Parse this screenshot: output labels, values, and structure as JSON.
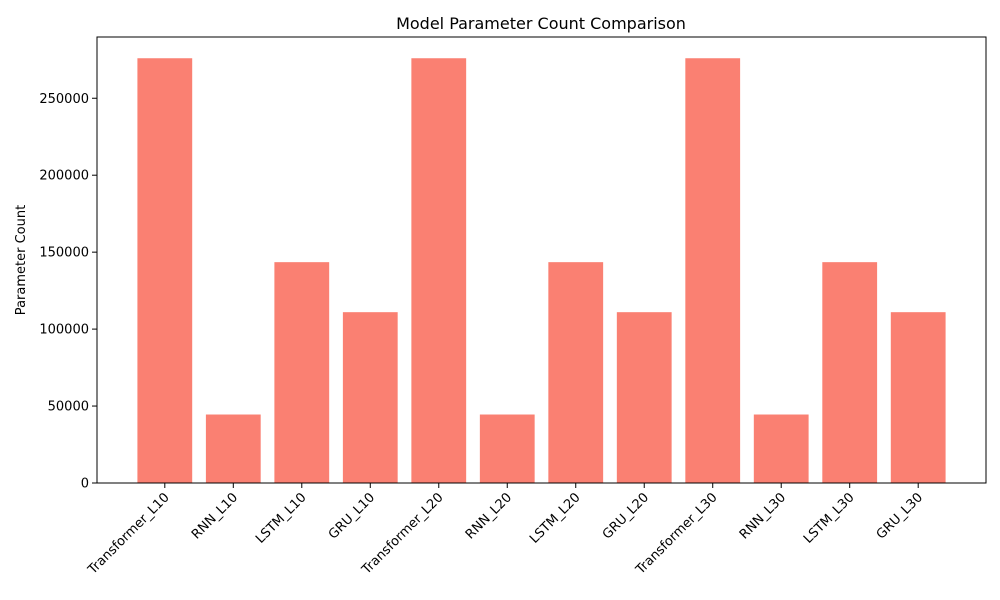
{
  "chart_data": {
    "type": "bar",
    "title": "Model Parameter Count Comparison",
    "xlabel": "",
    "ylabel": "Parameter Count",
    "categories": [
      "Transformer_L10",
      "RNN_L10",
      "LSTM_L10",
      "GRU_L10",
      "Transformer_L20",
      "RNN_L20",
      "LSTM_L20",
      "GRU_L20",
      "Transformer_L30",
      "RNN_L30",
      "LSTM_L30",
      "GRU_L30"
    ],
    "values": [
      276000,
      44500,
      143500,
      111000,
      276000,
      44500,
      143500,
      111000,
      276000,
      44500,
      143500,
      111000
    ],
    "ylim": [
      0,
      289800
    ],
    "yticks": [
      0,
      50000,
      100000,
      150000,
      200000,
      250000
    ],
    "x_tick_rotation": 45,
    "grid": false,
    "bar_color": "#fa8072"
  }
}
